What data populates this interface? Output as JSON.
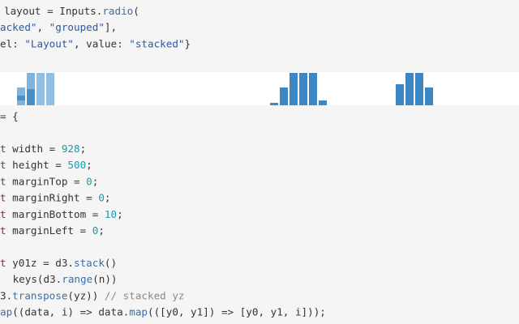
{
  "blocks": [
    {
      "lines": [
        [
          {
            "text": "layout = Inputs.",
            "color": "#333333"
          },
          {
            "text": "radio",
            "color": "#3a6ea8"
          },
          {
            "text": "(",
            "color": "#333333"
          }
        ],
        [
          {
            "text": "acked\"",
            "color": "#2a5aa0"
          },
          {
            "text": ", ",
            "color": "#333333"
          },
          {
            "text": "\"grouped\"",
            "color": "#2a5aa0"
          },
          {
            "text": "],",
            "color": "#333333"
          }
        ],
        [
          {
            "text": "el: ",
            "color": "#333333"
          },
          {
            "text": "\"Layout\"",
            "color": "#2a5aa0"
          },
          {
            "text": ", value: ",
            "color": "#333333"
          },
          {
            "text": "\"stacked\"",
            "color": "#2a5aa0"
          },
          {
            "text": "}",
            "color": "#333333"
          }
        ]
      ]
    },
    {
      "lines": [
        [
          {
            "text": "= {",
            "color": "#333333"
          }
        ]
      ]
    },
    {
      "lines": [
        [
          {
            "text": "t",
            "color": "#7a3050"
          },
          {
            "text": " width = ",
            "color": "#333333"
          },
          {
            "text": "928",
            "color": "#1a9bb0"
          },
          {
            "text": ";",
            "color": "#333333"
          }
        ],
        [
          {
            "text": "t",
            "color": "#7a3050"
          },
          {
            "text": " height = ",
            "color": "#333333"
          },
          {
            "text": "500",
            "color": "#1a9bb0"
          },
          {
            "text": ";",
            "color": "#333333"
          }
        ],
        [
          {
            "text": "t",
            "color": "#7a3050"
          },
          {
            "text": " marginTop = ",
            "color": "#333333"
          },
          {
            "text": "0",
            "color": "#1a9bb0"
          },
          {
            "text": ";",
            "color": "#333333"
          }
        ],
        [
          {
            "text": "t",
            "color": "#7a3050"
          },
          {
            "text": " marginRight = ",
            "color": "#333333"
          },
          {
            "text": "0",
            "color": "#1a9bb0"
          },
          {
            "text": ";",
            "color": "#333333"
          }
        ],
        [
          {
            "text": "t",
            "color": "#7a3050"
          },
          {
            "text": " marginBottom = ",
            "color": "#333333"
          },
          {
            "text": "10",
            "color": "#1a9bb0"
          },
          {
            "text": ";",
            "color": "#333333"
          }
        ],
        [
          {
            "text": "t",
            "color": "#7a3050"
          },
          {
            "text": " marginLeft = ",
            "color": "#333333"
          },
          {
            "text": "0",
            "color": "#1a9bb0"
          },
          {
            "text": ";",
            "color": "#333333"
          }
        ]
      ]
    },
    {
      "lines": [
        [
          {
            "text": "t",
            "color": "#7a3050"
          },
          {
            "text": " y01z = d3.",
            "color": "#333333"
          },
          {
            "text": "stack",
            "color": "#3a6ea8"
          },
          {
            "text": "()",
            "color": "#333333"
          }
        ],
        [
          {
            "text": " keys(d3.",
            "color": "#333333"
          },
          {
            "text": "range",
            "color": "#3a6ea8"
          },
          {
            "text": "(n))",
            "color": "#333333"
          }
        ],
        [
          {
            "text": "3.",
            "color": "#333333"
          },
          {
            "text": "transpose",
            "color": "#3a6ea8"
          },
          {
            "text": "(yz)) ",
            "color": "#333333"
          },
          {
            "text": "// stacked yz",
            "color": "#8a8a8a"
          }
        ],
        [
          {
            "text": "ap",
            "color": "#3a6ea8"
          },
          {
            "text": "((data, i) => data.",
            "color": "#333333"
          },
          {
            "text": "map",
            "color": "#3a6ea8"
          },
          {
            "text": "(([y0, y1]) => [y0, y1, i]));",
            "color": "#333333"
          }
        ]
      ]
    }
  ]
}
